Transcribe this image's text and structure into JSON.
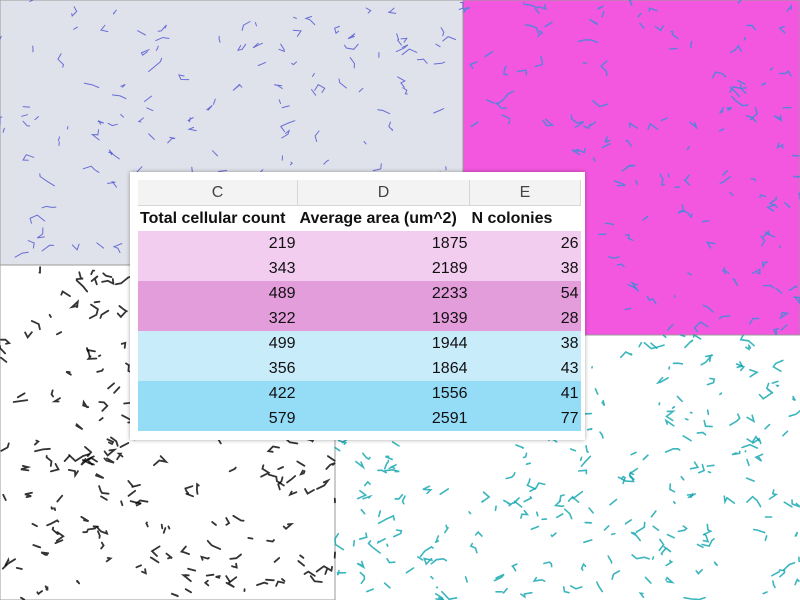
{
  "columns": [
    "C",
    "D",
    "E"
  ],
  "headers": [
    "Total cellular count",
    "Average area (um^2)",
    "N colonies"
  ],
  "rows": [
    [
      219,
      1875,
      26
    ],
    [
      343,
      2189,
      38
    ],
    [
      489,
      2233,
      54
    ],
    [
      322,
      1939,
      28
    ],
    [
      499,
      1944,
      38
    ],
    [
      356,
      1864,
      43
    ],
    [
      422,
      1556,
      41
    ],
    [
      579,
      2591,
      77
    ]
  ]
}
